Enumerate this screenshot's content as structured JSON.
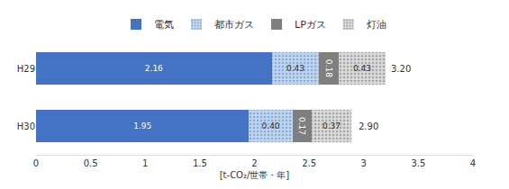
{
  "chart_data": {
    "type": "bar",
    "orientation": "horizontal",
    "stacked": true,
    "categories": [
      "H29",
      "H30"
    ],
    "series": [
      {
        "name": "電気",
        "color": "#4472c4",
        "values": [
          2.16,
          1.95
        ]
      },
      {
        "name": "都市ガス",
        "color": "#bdd7ee",
        "values": [
          0.43,
          0.4
        ],
        "value_labels": [
          "0.43",
          "0.40"
        ]
      },
      {
        "name": "LPガス",
        "color": "#7f7f7f",
        "values": [
          0.18,
          0.17
        ]
      },
      {
        "name": "灯油",
        "color": "#d9d9d9",
        "values": [
          0.43,
          0.37
        ]
      }
    ],
    "totals": [
      3.2,
      2.9
    ],
    "total_labels": [
      "3.20",
      "2.90"
    ],
    "xlabel": "[t-CO₂/世帯・年]",
    "xlim": [
      0,
      4
    ],
    "xticks": [
      0,
      0.5,
      1,
      1.5,
      2,
      2.5,
      3,
      3.5,
      4
    ],
    "grid": false,
    "legend": "top",
    "data_labels": true
  }
}
